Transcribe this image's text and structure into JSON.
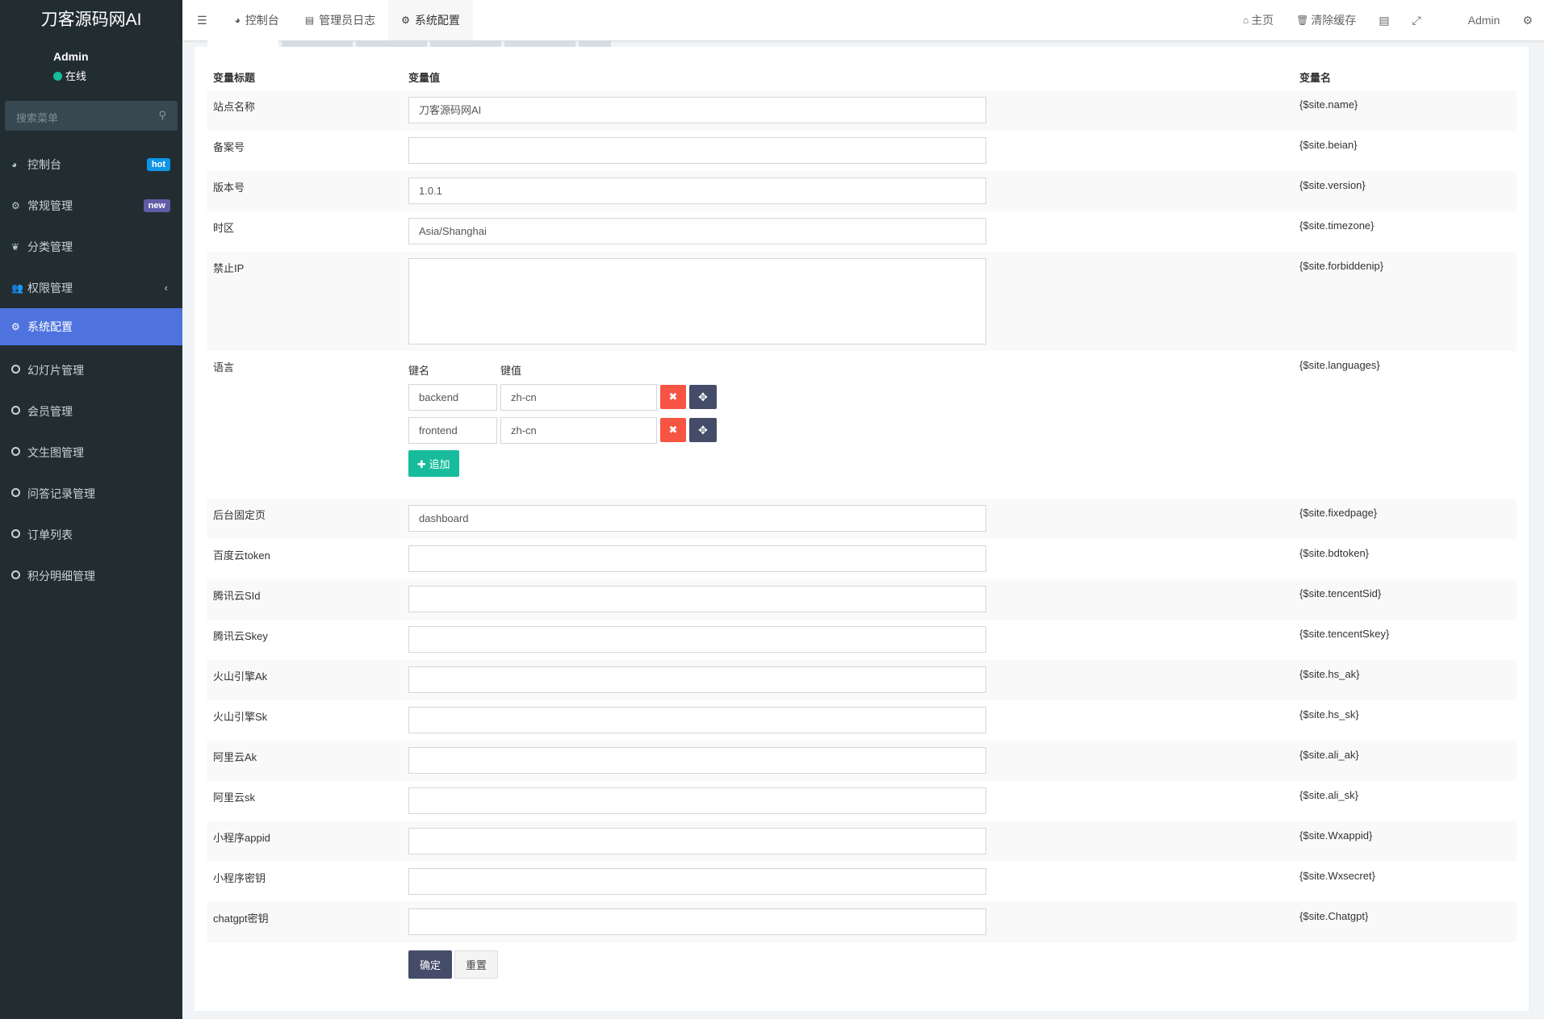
{
  "sidebar": {
    "logo": "刀客源码网AI",
    "user": "Admin",
    "status": "在线",
    "search_placeholder": "搜索菜单",
    "items": [
      {
        "label": "控制台",
        "icon": "dashboard-icon",
        "badge": "hot",
        "badge_color": "#0e95e8"
      },
      {
        "label": "常规管理",
        "icon": "cogs-icon",
        "badge": "new",
        "badge_color": "#605ca8"
      },
      {
        "label": "分类管理",
        "icon": "leaf-icon"
      },
      {
        "label": "权限管理",
        "icon": "users-icon",
        "caret": "‹"
      },
      {
        "label": "系统配置",
        "icon": "gear-icon",
        "active": true
      },
      {
        "label": "幻灯片管理",
        "icon": "circle-icon"
      },
      {
        "label": "会员管理",
        "icon": "circle-icon"
      },
      {
        "label": "文生图管理",
        "icon": "circle-icon"
      },
      {
        "label": "问答记录管理",
        "icon": "circle-icon"
      },
      {
        "label": "订单列表",
        "icon": "circle-icon"
      },
      {
        "label": "积分明细管理",
        "icon": "circle-icon"
      }
    ]
  },
  "header": {
    "tabs": [
      {
        "label": "控制台",
        "icon": "dashboard-icon"
      },
      {
        "label": "管理员日志",
        "icon": "list-icon"
      },
      {
        "label": "系统配置",
        "icon": "gear-icon",
        "active": true
      }
    ],
    "home": "主页",
    "clear_cache": "清除缓存",
    "user": "Admin"
  },
  "table": {
    "headers": [
      "变量标题",
      "变量值",
      "变量名"
    ],
    "rows": [
      {
        "title": "站点名称",
        "value": "刀客源码网AI",
        "name": "{$site.name}"
      },
      {
        "title": "备案号",
        "value": "",
        "name": "{$site.beian}"
      },
      {
        "title": "版本号",
        "value": "1.0.1",
        "name": "{$site.version}"
      },
      {
        "title": "时区",
        "value": "Asia/Shanghai",
        "name": "{$site.timezone}"
      },
      {
        "title": "禁止IP",
        "value": "",
        "name": "{$site.forbiddenip}",
        "type": "textarea"
      },
      {
        "title": "语言",
        "name": "{$site.languages}",
        "type": "kv",
        "key_label": "键名",
        "value_label": "键值",
        "pairs": [
          {
            "k": "backend",
            "v": "zh-cn"
          },
          {
            "k": "frontend",
            "v": "zh-cn"
          }
        ],
        "add_label": "追加"
      },
      {
        "title": "后台固定页",
        "value": "dashboard",
        "name": "{$site.fixedpage}"
      },
      {
        "title": "百度云token",
        "value": "",
        "name": "{$site.bdtoken}"
      },
      {
        "title": "腾讯云SId",
        "value": "",
        "name": "{$site.tencentSid}"
      },
      {
        "title": "腾讯云Skey",
        "value": "",
        "name": "{$site.tencentSkey}"
      },
      {
        "title": "火山引擎Ak",
        "value": "",
        "name": "{$site.hs_ak}"
      },
      {
        "title": "火山引擎Sk",
        "value": "",
        "name": "{$site.hs_sk}"
      },
      {
        "title": "阿里云Ak",
        "value": "",
        "name": "{$site.ali_ak}"
      },
      {
        "title": "阿里云sk",
        "value": "",
        "name": "{$site.ali_sk}"
      },
      {
        "title": "小程序appid",
        "value": "",
        "name": "{$site.Wxappid}"
      },
      {
        "title": "小程序密钥",
        "value": "",
        "name": "{$site.Wxsecret}"
      },
      {
        "title": "chatgpt密钥",
        "value": "",
        "name": "{$site.Chatgpt}"
      }
    ]
  },
  "buttons": {
    "submit": "确定",
    "reset": "重置"
  }
}
